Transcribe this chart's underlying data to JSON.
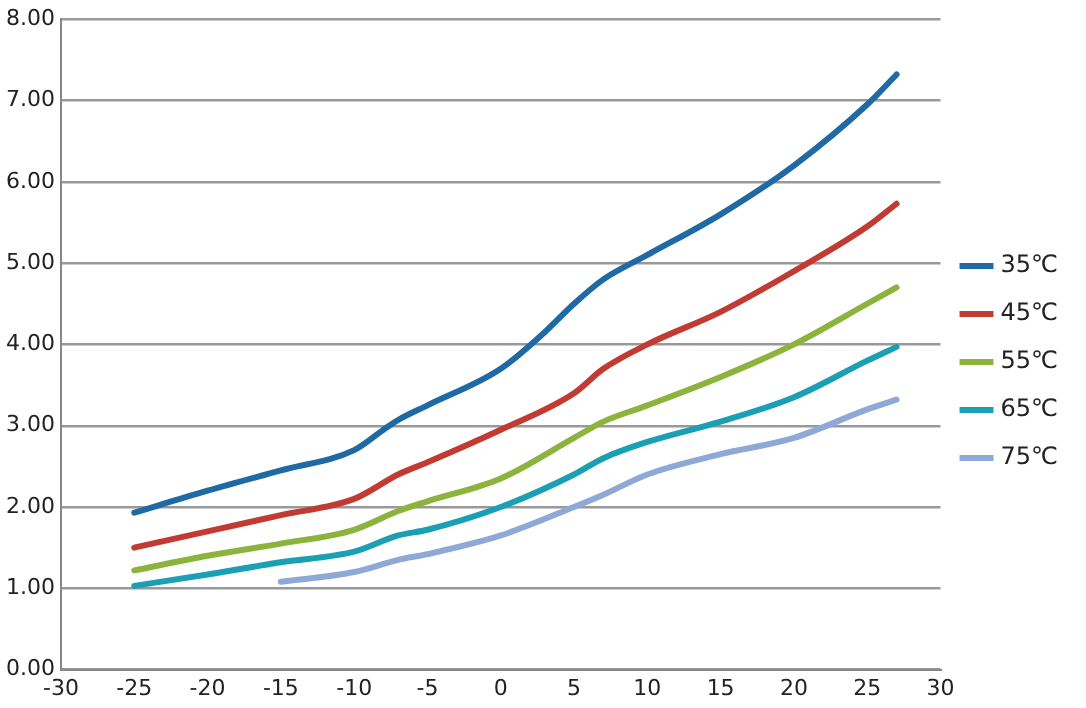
{
  "chart_data": {
    "type": "line",
    "xlim": [
      -30,
      30
    ],
    "xticks": [
      -30,
      -25,
      -20,
      -15,
      -10,
      -5,
      0,
      5,
      10,
      15,
      20,
      25,
      30
    ],
    "ylim": [
      0,
      8
    ],
    "yticks": [
      {
        "value": 0,
        "label": "0.00"
      },
      {
        "value": 1,
        "label": "1.00"
      },
      {
        "value": 2,
        "label": "2.00"
      },
      {
        "value": 3,
        "label": "3.00"
      },
      {
        "value": 4,
        "label": "4.00"
      },
      {
        "value": 5,
        "label": "5.00"
      },
      {
        "value": 6,
        "label": "6.00"
      },
      {
        "value": 7,
        "label": "7.00"
      },
      {
        "value": 8,
        "label": "8.00"
      }
    ],
    "grid": "y",
    "legend": "right",
    "marker": "none",
    "line_style": "solid",
    "series": [
      {
        "name": "35℃",
        "color": "#1f6aa5",
        "x": [
          -25,
          -20,
          -15,
          -10,
          -8,
          -7,
          -5,
          0,
          3,
          5,
          7,
          10,
          15,
          20,
          25,
          27
        ],
        "values": [
          1.93,
          2.2,
          2.45,
          2.7,
          2.95,
          3.07,
          3.25,
          3.7,
          4.15,
          4.5,
          4.8,
          5.1,
          5.6,
          6.2,
          6.95,
          7.32
        ]
      },
      {
        "name": "45℃",
        "color": "#c23b32",
        "x": [
          -25,
          -20,
          -15,
          -10,
          -7,
          -5,
          0,
          5,
          7,
          10,
          15,
          20,
          25,
          27
        ],
        "values": [
          1.5,
          1.7,
          1.9,
          2.1,
          2.4,
          2.55,
          2.95,
          3.4,
          3.7,
          4.0,
          4.4,
          4.9,
          5.45,
          5.73
        ]
      },
      {
        "name": "55℃",
        "color": "#8cb43c",
        "x": [
          -25,
          -20,
          -15,
          -10,
          -7,
          -5,
          0,
          5,
          7,
          10,
          15,
          20,
          25,
          27
        ],
        "values": [
          1.22,
          1.4,
          1.55,
          1.72,
          1.95,
          2.07,
          2.35,
          2.85,
          3.05,
          3.25,
          3.6,
          4.0,
          4.5,
          4.7
        ]
      },
      {
        "name": "65℃",
        "color": "#1a9fb5",
        "x": [
          -25,
          -20,
          -15,
          -10,
          -7,
          -5,
          0,
          5,
          7,
          10,
          15,
          20,
          25,
          27
        ],
        "values": [
          1.03,
          1.17,
          1.32,
          1.45,
          1.65,
          1.72,
          2.0,
          2.4,
          2.6,
          2.8,
          3.05,
          3.35,
          3.8,
          3.97
        ]
      },
      {
        "name": "75℃",
        "color": "#8fa9d6",
        "x": [
          -15,
          -10,
          -7,
          -5,
          0,
          5,
          7,
          10,
          15,
          20,
          25,
          27
        ],
        "values": [
          1.08,
          1.2,
          1.35,
          1.42,
          1.65,
          2.0,
          2.15,
          2.4,
          2.65,
          2.85,
          3.2,
          3.32
        ]
      }
    ]
  }
}
